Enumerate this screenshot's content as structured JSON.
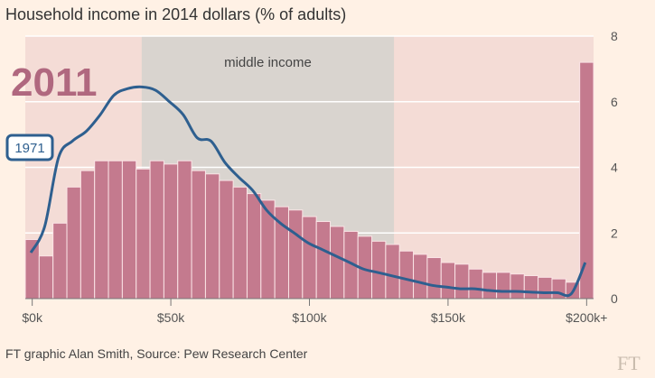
{
  "chart_data": {
    "type": "bar",
    "title": "Household income in 2014 dollars (% of adults)",
    "xlabel": "",
    "ylabel": "",
    "x_ticks": [
      {
        "label": "$0k",
        "value": 0
      },
      {
        "label": "$50k",
        "value": 50
      },
      {
        "label": "$100k",
        "value": 100
      },
      {
        "label": "$150k",
        "value": 150
      },
      {
        "label": "$200k+",
        "value": 200
      }
    ],
    "y_ticks": [
      0,
      2,
      4,
      6,
      8
    ],
    "ylim": [
      0,
      8
    ],
    "xlim": [
      0,
      205
    ],
    "grid": true,
    "band": {
      "label": "middle income",
      "from": 42,
      "to": 133
    },
    "bars": {
      "name": "2011",
      "bin_width": 5,
      "x": [
        0,
        5,
        10,
        15,
        20,
        25,
        30,
        35,
        40,
        45,
        50,
        55,
        60,
        65,
        70,
        75,
        80,
        85,
        90,
        95,
        100,
        105,
        110,
        115,
        120,
        125,
        130,
        135,
        140,
        145,
        150,
        155,
        160,
        165,
        170,
        175,
        180,
        185,
        190,
        195,
        200
      ],
      "values": [
        1.8,
        1.3,
        2.3,
        3.4,
        3.9,
        4.2,
        4.2,
        4.2,
        3.95,
        4.2,
        4.1,
        4.2,
        3.9,
        3.8,
        3.6,
        3.4,
        3.2,
        3.0,
        2.8,
        2.7,
        2.5,
        2.35,
        2.2,
        2.05,
        1.9,
        1.75,
        1.65,
        1.45,
        1.35,
        1.25,
        1.1,
        1.05,
        0.9,
        0.8,
        0.8,
        0.75,
        0.7,
        0.65,
        0.6,
        0.5,
        7.2
      ]
    },
    "line": {
      "name": "1971",
      "x": [
        2,
        7,
        12,
        17,
        22,
        27,
        32,
        37,
        42,
        47,
        52,
        57,
        62,
        67,
        72,
        77,
        82,
        87,
        92,
        97,
        102,
        107,
        112,
        117,
        122,
        127,
        132,
        137,
        142,
        147,
        152,
        157,
        162,
        167,
        172,
        177,
        182,
        187,
        192,
        197,
        202
      ],
      "values": [
        1.4,
        2.2,
        4.3,
        4.8,
        5.1,
        5.6,
        6.2,
        6.4,
        6.45,
        6.35,
        6.0,
        5.6,
        4.9,
        4.8,
        4.15,
        3.7,
        3.3,
        2.7,
        2.3,
        2.0,
        1.7,
        1.5,
        1.3,
        1.1,
        0.9,
        0.8,
        0.7,
        0.6,
        0.5,
        0.4,
        0.35,
        0.3,
        0.3,
        0.25,
        0.22,
        0.22,
        0.2,
        0.18,
        0.18,
        0.15,
        1.1
      ]
    }
  },
  "labels": {
    "title": "Household income in 2014 dollars (% of adults)",
    "year_label": "2011",
    "series_tag": "1971",
    "band_label": "middle income",
    "source": "FT graphic Alan Smith, Source: Pew Research Center",
    "brand": "FT"
  },
  "colors": {
    "background": "#fff1e5",
    "plot_area": "#f4dcd6",
    "band": "#d9d4cf",
    "bar": "#c47a8e",
    "bar_edge": "#fbe4e6",
    "line": "#2e5f8f",
    "grid": "#ffffff",
    "year_label": "#b0687f"
  }
}
